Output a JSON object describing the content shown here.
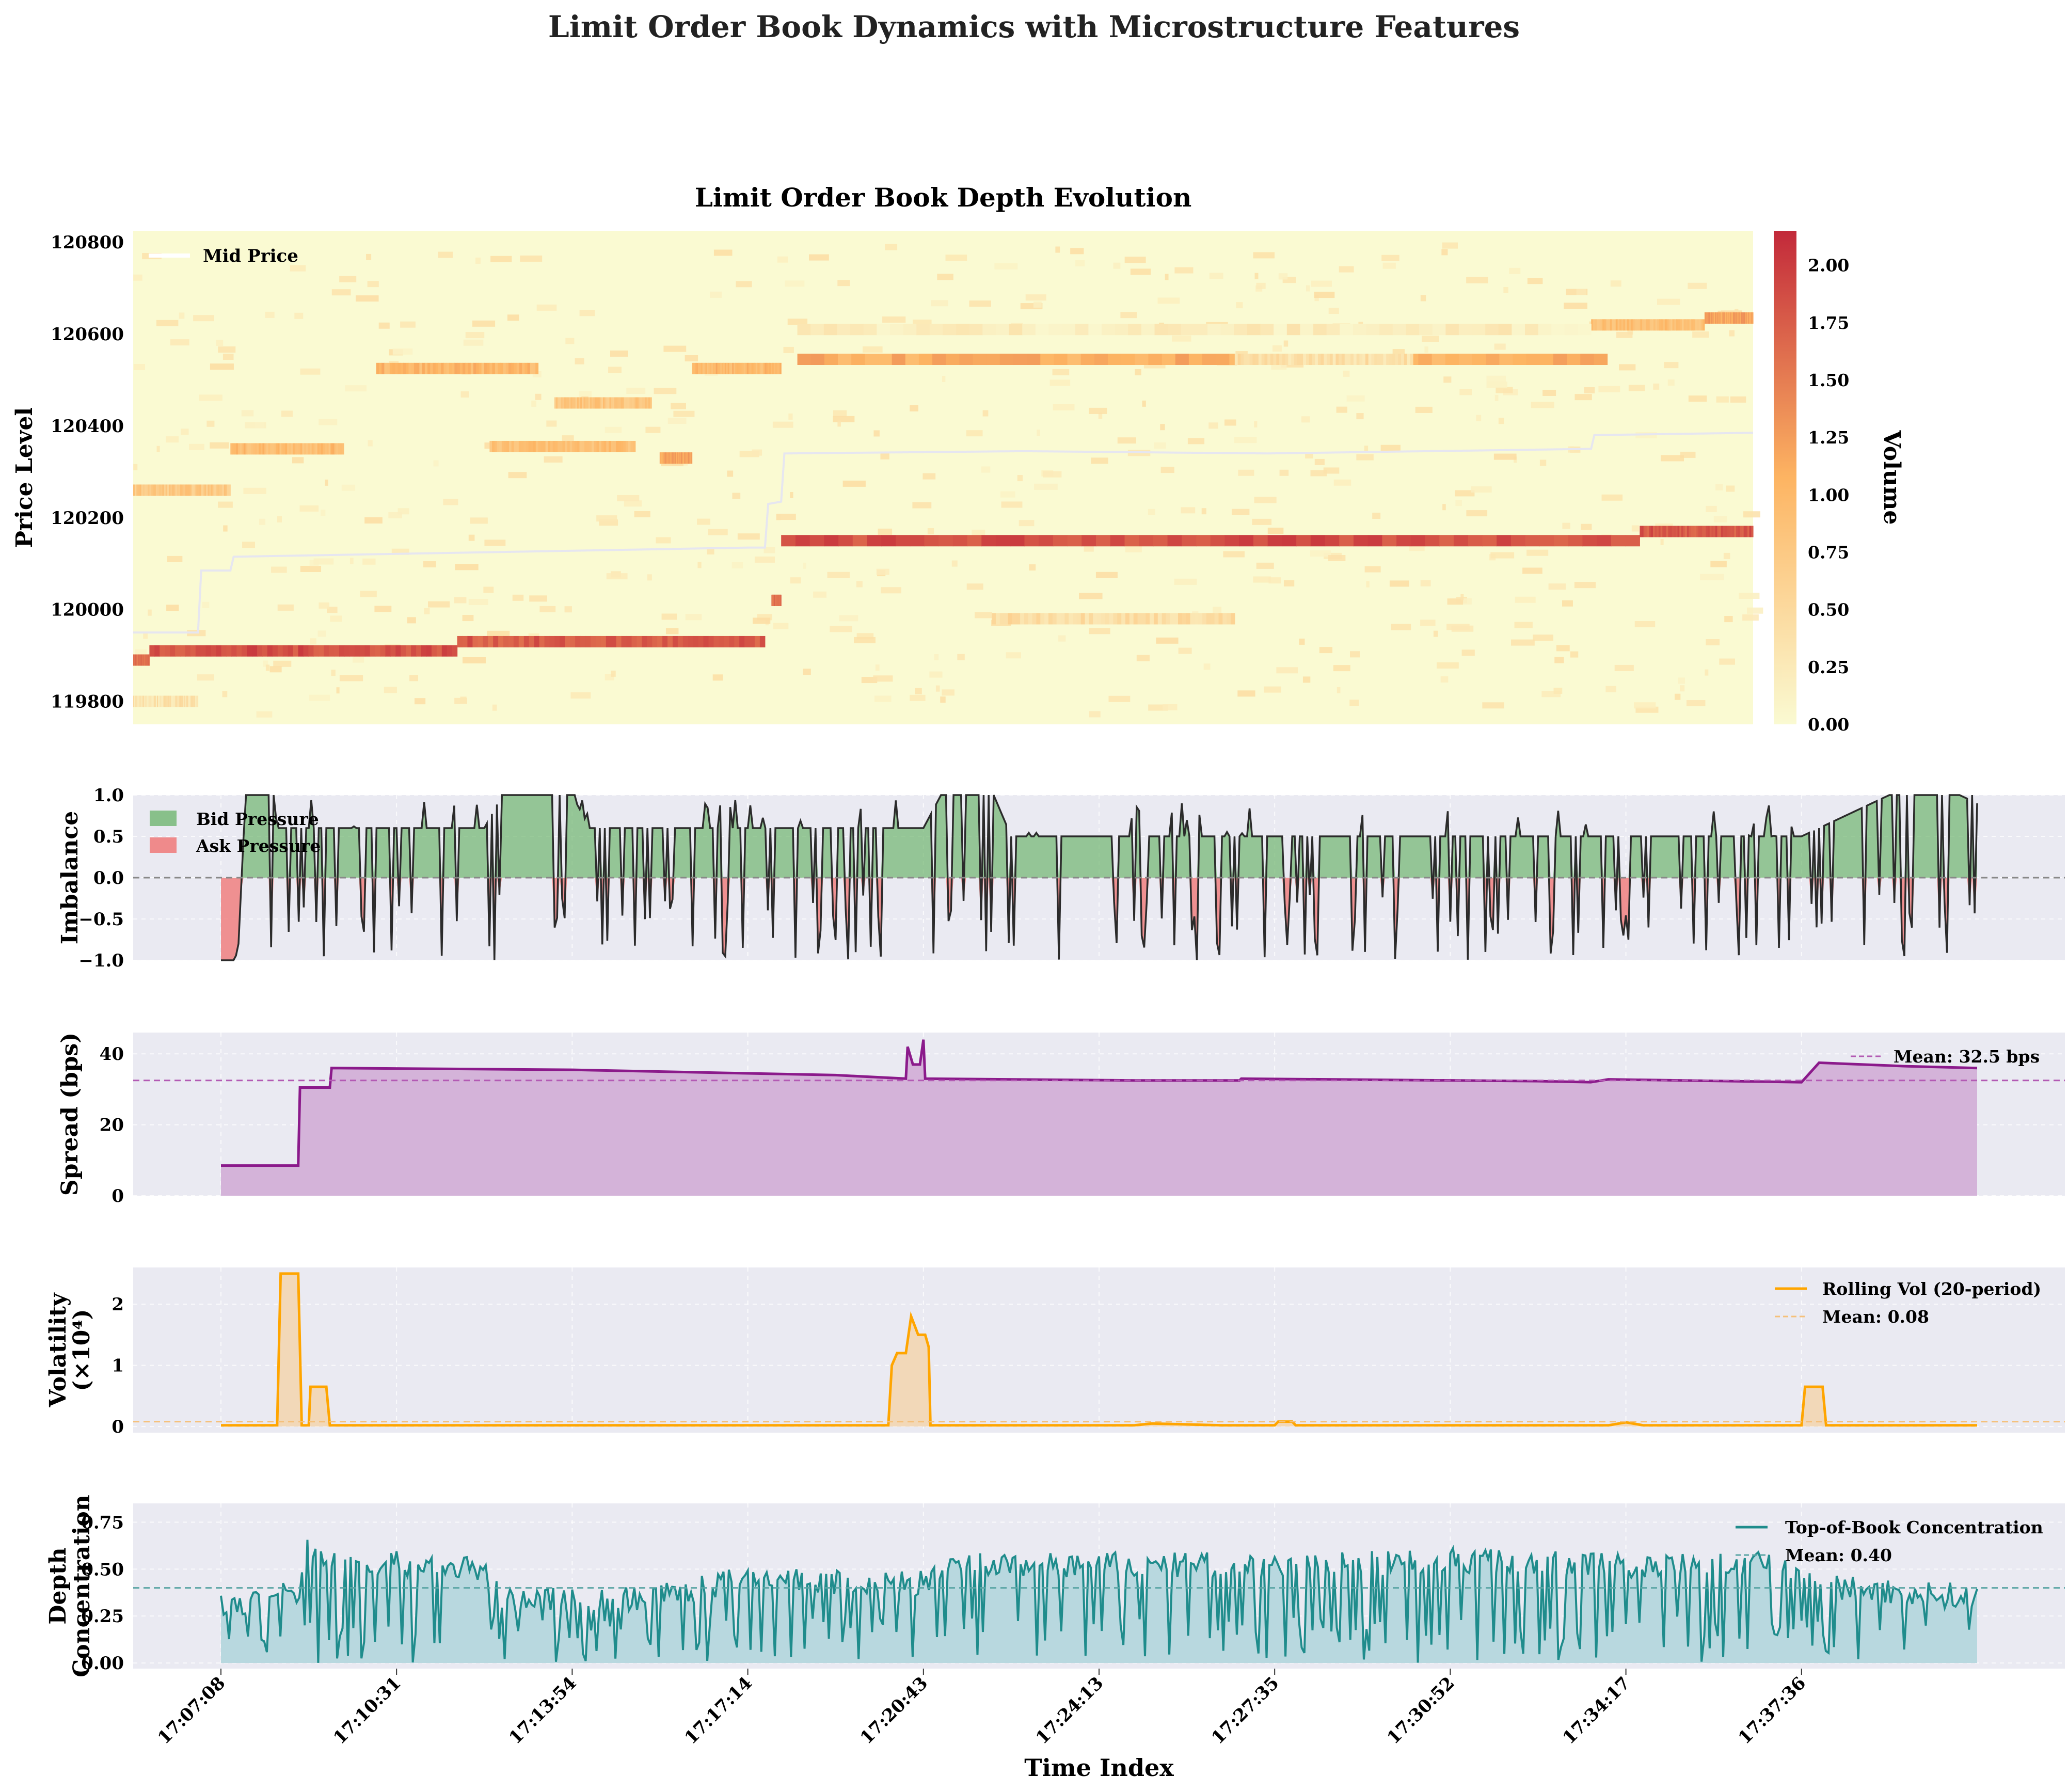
{
  "figure": {
    "title": "Limit Order Book Dynamics with Microstructure Features",
    "xlabel": "Time Index",
    "time_ticks": [
      "17:07:08",
      "17:10:31",
      "17:13:54",
      "17:17:14",
      "17:20:43",
      "17:24:13",
      "17:27:35",
      "17:30:52",
      "17:34:17",
      "17:37:36"
    ]
  },
  "colors": {
    "panel_bg": "#eaeaf2",
    "heat_low": "#fafad2",
    "heat_mid": "#fdb462",
    "heat_high": "#c2293a",
    "mid_price": "#e6e6f0",
    "bid": "#6fb56f",
    "ask": "#f08080",
    "imbalance_line": "#2b2b2b",
    "spread": "#8b1a8b",
    "spread_fill": "#d4b3d9",
    "vol": "#ffa500",
    "vol_fill": "#f2d8b8",
    "depth": "#1f8c8c",
    "depth_fill": "#b8d8df"
  },
  "chart_data": [
    {
      "type": "heatmap",
      "title": "Limit Order Book Depth Evolution",
      "ylabel": "Price Level",
      "yticks": [
        119800,
        120000,
        120200,
        120400,
        120600,
        120800
      ],
      "ylim": [
        119750,
        120825
      ],
      "colorbar": {
        "label": "Volume",
        "ticks": [
          "0.00",
          "0.25",
          "0.50",
          "0.75",
          "1.00",
          "1.25",
          "1.50",
          "1.75",
          "2.00"
        ],
        "range": [
          0,
          2.15
        ]
      },
      "legend": [
        "Mid Price"
      ],
      "mid_price": [
        [
          0.0,
          119950
        ],
        [
          0.04,
          119950
        ],
        [
          0.042,
          120085
        ],
        [
          0.06,
          120085
        ],
        [
          0.062,
          120115
        ],
        [
          0.38,
          120135
        ],
        [
          0.39,
          120135
        ],
        [
          0.392,
          120230
        ],
        [
          0.4,
          120235
        ],
        [
          0.402,
          120340
        ],
        [
          0.55,
          120345
        ],
        [
          0.7,
          120340
        ],
        [
          0.9,
          120350
        ],
        [
          0.902,
          120380
        ],
        [
          1.0,
          120385
        ]
      ],
      "bands": [
        {
          "price": 120150,
          "x0": 0.4,
          "x1": 0.93,
          "value": 1.85
        },
        {
          "price": 120170,
          "x0": 0.93,
          "x1": 1.0,
          "value": 1.8
        },
        {
          "price": 119910,
          "x0": 0.01,
          "x1": 0.2,
          "value": 1.85
        },
        {
          "price": 119930,
          "x0": 0.2,
          "x1": 0.39,
          "value": 1.75
        },
        {
          "price": 120545,
          "x0": 0.41,
          "x1": 0.91,
          "value": 1.1
        },
        {
          "price": 120525,
          "x0": 0.15,
          "x1": 0.25,
          "value": 1.0
        },
        {
          "price": 120525,
          "x0": 0.345,
          "x1": 0.4,
          "value": 1.0
        },
        {
          "price": 120350,
          "x0": 0.06,
          "x1": 0.13,
          "value": 0.95
        },
        {
          "price": 120355,
          "x0": 0.22,
          "x1": 0.31,
          "value": 0.9
        },
        {
          "price": 120260,
          "x0": 0.0,
          "x1": 0.06,
          "value": 0.75
        },
        {
          "price": 120450,
          "x0": 0.26,
          "x1": 0.32,
          "value": 0.8
        },
        {
          "price": 120330,
          "x0": 0.325,
          "x1": 0.345,
          "value": 1.2
        },
        {
          "price": 120620,
          "x0": 0.9,
          "x1": 0.97,
          "value": 0.9
        },
        {
          "price": 120635,
          "x0": 0.97,
          "x1": 1.0,
          "value": 1.2
        },
        {
          "price": 120020,
          "x0": 0.394,
          "x1": 0.4,
          "value": 1.6
        },
        {
          "price": 119890,
          "x0": 0.0,
          "x1": 0.01,
          "value": 1.6
        },
        {
          "price": 119980,
          "x0": 0.53,
          "x1": 0.68,
          "value": 0.45
        },
        {
          "price": 120545,
          "x0": 0.68,
          "x1": 0.79,
          "value": 0.4
        },
        {
          "price": 120610,
          "x0": 0.41,
          "x1": 0.9,
          "value": 0.2
        },
        {
          "price": 119800,
          "x0": 0.0,
          "x1": 0.04,
          "value": 0.35
        }
      ]
    },
    {
      "type": "area",
      "ylabel": "Imbalance",
      "ylim": [
        -1.0,
        1.0
      ],
      "yticks": [
        "1.0",
        "0.5",
        "0.0",
        "−0.5",
        "−1.0"
      ],
      "legend": [
        "Bid Pressure",
        "Ask Pressure"
      ],
      "profile": [
        [
          0.0,
          -1.0
        ],
        [
          0.008,
          -1.0
        ],
        [
          0.01,
          -0.8
        ],
        [
          0.014,
          1.0
        ],
        [
          0.03,
          1.0
        ],
        [
          0.032,
          0.6
        ],
        [
          0.15,
          0.6
        ],
        [
          0.16,
          1.0
        ],
        [
          0.2,
          1.0
        ],
        [
          0.21,
          0.6
        ],
        [
          0.4,
          0.6
        ],
        [
          0.41,
          1.0
        ],
        [
          0.44,
          1.0
        ],
        [
          0.45,
          0.5
        ],
        [
          0.9,
          0.5
        ],
        [
          0.95,
          1.0
        ],
        [
          0.99,
          1.0
        ],
        [
          1.0,
          0.9
        ]
      ]
    },
    {
      "type": "line",
      "ylabel": "Spread (bps)",
      "ylim": [
        0,
        46
      ],
      "yticks": [
        0,
        20,
        40
      ],
      "mean_label": "Mean: 32.5 bps",
      "mean": 32.5,
      "points": [
        [
          0.0,
          8.5
        ],
        [
          0.044,
          8.5
        ],
        [
          0.045,
          30.5
        ],
        [
          0.062,
          30.5
        ],
        [
          0.063,
          36
        ],
        [
          0.2,
          35.5
        ],
        [
          0.35,
          34
        ],
        [
          0.39,
          33
        ],
        [
          0.391,
          42
        ],
        [
          0.394,
          37
        ],
        [
          0.398,
          37
        ],
        [
          0.4,
          44
        ],
        [
          0.401,
          33
        ],
        [
          0.52,
          32.5
        ],
        [
          0.58,
          32.5
        ],
        [
          0.581,
          33
        ],
        [
          0.75,
          32.3
        ],
        [
          0.78,
          32
        ],
        [
          0.79,
          32.8
        ],
        [
          0.9,
          32
        ],
        [
          0.91,
          37.5
        ],
        [
          0.96,
          36.5
        ],
        [
          1.0,
          36
        ]
      ]
    },
    {
      "type": "line",
      "ylabel": "Volatility\n(×10⁴)",
      "ylim": [
        -0.1,
        2.6
      ],
      "yticks": [
        0,
        1,
        2
      ],
      "legend": [
        "Rolling Vol (20-period)"
      ],
      "mean_label": "Mean: 0.08",
      "mean": 0.08,
      "points": [
        [
          0.0,
          0.02
        ],
        [
          0.032,
          0.02
        ],
        [
          0.034,
          2.5
        ],
        [
          0.044,
          2.5
        ],
        [
          0.046,
          0.02
        ],
        [
          0.05,
          0.02
        ],
        [
          0.051,
          0.65
        ],
        [
          0.06,
          0.65
        ],
        [
          0.062,
          0.02
        ],
        [
          0.38,
          0.02
        ],
        [
          0.382,
          1.0
        ],
        [
          0.385,
          1.2
        ],
        [
          0.39,
          1.2
        ],
        [
          0.393,
          1.8
        ],
        [
          0.397,
          1.5
        ],
        [
          0.401,
          1.5
        ],
        [
          0.403,
          1.3
        ],
        [
          0.404,
          0.02
        ],
        [
          0.52,
          0.02
        ],
        [
          0.53,
          0.05
        ],
        [
          0.57,
          0.02
        ],
        [
          0.6,
          0.02
        ],
        [
          0.602,
          0.08
        ],
        [
          0.61,
          0.08
        ],
        [
          0.612,
          0.02
        ],
        [
          0.79,
          0.02
        ],
        [
          0.8,
          0.07
        ],
        [
          0.81,
          0.02
        ],
        [
          0.9,
          0.02
        ],
        [
          0.902,
          0.65
        ],
        [
          0.912,
          0.65
        ],
        [
          0.914,
          0.02
        ],
        [
          1.0,
          0.02
        ]
      ]
    },
    {
      "type": "line",
      "ylabel": "Depth\nConcentration",
      "ylim": [
        -0.03,
        0.85
      ],
      "yticks": [
        "0.00",
        "0.25",
        "0.50",
        "0.75"
      ],
      "legend": [
        "Top-of-Book Concentration"
      ],
      "mean_label": "Mean: 0.40",
      "mean": 0.4,
      "profile": [
        [
          0.0,
          0.3
        ],
        [
          0.045,
          0.38
        ],
        [
          0.048,
          0.75
        ],
        [
          0.052,
          0.55
        ],
        [
          0.15,
          0.5
        ],
        [
          0.16,
          0.33
        ],
        [
          0.25,
          0.35
        ],
        [
          0.3,
          0.45
        ],
        [
          0.4,
          0.42
        ],
        [
          0.42,
          0.52
        ],
        [
          0.6,
          0.52
        ],
        [
          0.7,
          0.55
        ],
        [
          0.8,
          0.52
        ],
        [
          0.9,
          0.52
        ],
        [
          0.92,
          0.4
        ],
        [
          1.0,
          0.35
        ]
      ]
    }
  ]
}
